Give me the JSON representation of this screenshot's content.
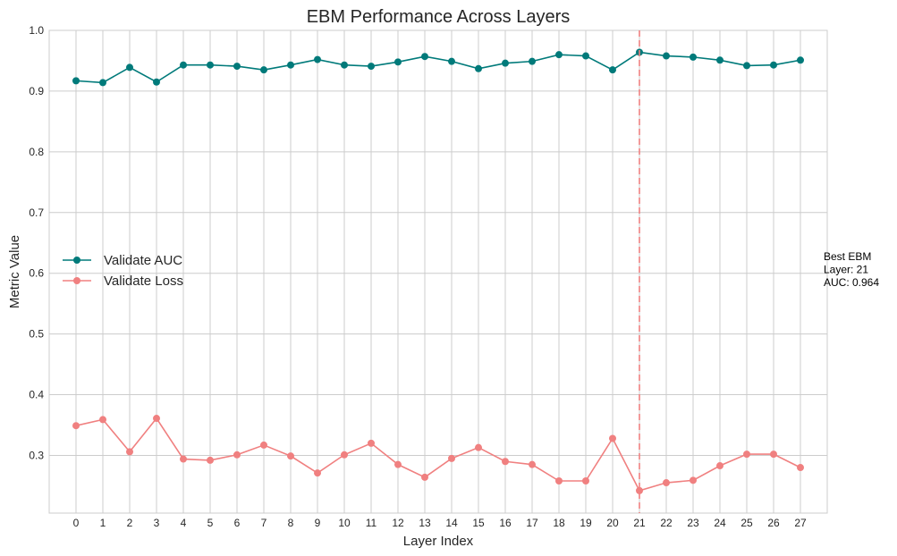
{
  "chart_data": {
    "type": "line",
    "title": "EBM Performance Across Layers",
    "xlabel": "Layer Index",
    "ylabel": "Metric Value",
    "x": [
      0,
      1,
      2,
      3,
      4,
      5,
      6,
      7,
      8,
      9,
      10,
      11,
      12,
      13,
      14,
      15,
      16,
      17,
      18,
      19,
      20,
      21,
      22,
      23,
      24,
      25,
      26,
      27
    ],
    "xlim": [
      -1,
      28
    ],
    "ylim": [
      0.205,
      1.0
    ],
    "yticks": [
      0.3,
      0.4,
      0.5,
      0.6,
      0.7,
      0.8,
      0.9,
      1.0
    ],
    "ytick_labels": [
      "0.3",
      "0.4",
      "0.5",
      "0.6",
      "0.7",
      "0.8",
      "0.9",
      "1.0"
    ],
    "grid": true,
    "legend_position": "center-left",
    "series": [
      {
        "name": "Validate AUC",
        "color": "#007a7a",
        "marker": "circle",
        "values": [
          0.917,
          0.914,
          0.939,
          0.915,
          0.943,
          0.943,
          0.941,
          0.935,
          0.943,
          0.952,
          0.943,
          0.941,
          0.948,
          0.957,
          0.949,
          0.937,
          0.946,
          0.949,
          0.96,
          0.958,
          0.935,
          0.964,
          0.958,
          0.956,
          0.951,
          0.942,
          0.943,
          0.951
        ]
      },
      {
        "name": "Validate Loss",
        "color": "#f08080",
        "marker": "circle",
        "values": [
          0.349,
          0.359,
          0.306,
          0.361,
          0.294,
          0.292,
          0.301,
          0.317,
          0.299,
          0.271,
          0.301,
          0.32,
          0.285,
          0.264,
          0.295,
          0.313,
          0.29,
          0.285,
          0.258,
          0.258,
          0.328,
          0.242,
          0.255,
          0.259,
          0.283,
          0.302,
          0.302,
          0.28
        ]
      }
    ],
    "best_marker": {
      "x": 21,
      "color": "#f08080",
      "style": "dashed",
      "annotation_lines": [
        "Best EBM",
        "Layer: 21",
        "AUC: 0.964"
      ]
    }
  }
}
